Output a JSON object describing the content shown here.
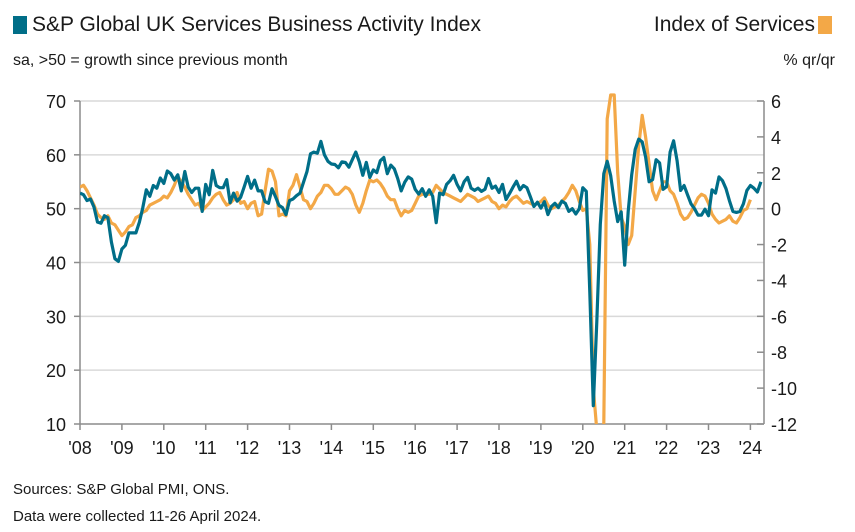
{
  "header": {
    "left_title": "S&P Global UK Services Business Activity Index",
    "left_subtitle": "sa, >50 = growth since previous month",
    "right_title": "Index of Services",
    "right_subtitle": "% qr/qr"
  },
  "footer": {
    "sources": "Sources: S&P Global PMI, ONS.",
    "note": "Data were collected 11-26 April 2024."
  },
  "colors": {
    "pmi": "#006e88",
    "ios": "#f3a847",
    "grid": "#d9d9d9",
    "axis": "#8c8c8c"
  },
  "chart_data": {
    "type": "line",
    "grid": true,
    "x_start": "2008-01",
    "x_frequency": "monthly",
    "x_tick_labels": [
      "'08",
      "'09",
      "'10",
      "'11",
      "'12",
      "'13",
      "'14",
      "'15",
      "'16",
      "'17",
      "'18",
      "'19",
      "'20",
      "'21",
      "'22",
      "'23",
      "'24"
    ],
    "y_left": {
      "range": [
        10,
        70
      ],
      "ticks": [
        "70",
        "60",
        "50",
        "40",
        "30",
        "20",
        "10"
      ]
    },
    "y_right": {
      "range": [
        -12,
        6
      ],
      "ticks": [
        "6",
        "4",
        "2",
        "0",
        "-2",
        "-4",
        "-6",
        "-8",
        "-10",
        "-12"
      ]
    },
    "series": [
      {
        "name": "S&P Global UK Services Business Activity Index",
        "axis": "left",
        "color": "#006e88",
        "values": [
          52.9,
          52.6,
          51.5,
          51.8,
          50.3,
          47.5,
          47.3,
          48.7,
          48.3,
          43.8,
          40.7,
          40.2,
          42.5,
          43.2,
          45.5,
          45.5,
          45.5,
          47.5,
          50.2,
          53.5,
          52.3,
          54.3,
          53.8,
          55.7,
          54.7,
          57.0,
          56.5,
          55.3,
          56.3,
          53.3,
          56.9,
          54.0,
          53.0,
          53.8,
          53.8,
          49.5,
          54.5,
          52.6,
          57.1,
          54.3,
          53.9,
          53.9,
          55.4,
          51.1,
          52.9,
          51.4,
          52.1,
          54.0,
          56.0,
          53.8,
          55.3,
          53.3,
          53.3,
          51.3,
          51.0,
          53.7,
          52.2,
          50.6,
          50.2,
          48.9,
          51.5,
          51.8,
          52.4,
          52.9,
          54.9,
          56.9,
          60.2,
          60.5,
          60.3,
          62.5,
          60.0,
          58.8,
          58.3,
          58.2,
          57.6,
          58.7,
          58.6,
          57.7,
          59.1,
          60.5,
          58.7,
          56.2,
          58.6,
          55.8,
          57.2,
          56.7,
          58.9,
          59.5,
          56.5,
          58.1,
          57.4,
          55.6,
          53.3,
          54.9,
          55.9,
          55.5,
          53.6,
          52.7,
          53.7,
          52.3,
          53.5,
          52.3,
          47.4,
          52.9,
          52.6,
          54.5,
          55.2,
          56.2,
          54.5,
          53.3,
          55.0,
          55.8,
          53.8,
          53.4,
          53.8,
          53.2,
          53.6,
          55.6,
          53.8,
          54.2,
          53.0,
          54.5,
          51.7,
          52.8,
          54.0,
          55.1,
          53.5,
          54.3,
          53.9,
          52.2,
          50.4,
          51.2,
          50.1,
          51.3,
          48.9,
          50.4,
          51.0,
          50.2,
          51.4,
          51.0,
          49.5,
          50.0,
          49.0,
          50.0,
          53.9,
          53.2,
          34.5,
          13.4,
          29.0,
          47.1,
          56.5,
          58.8,
          56.1,
          51.4,
          47.6,
          49.4,
          39.5,
          49.5,
          56.3,
          61.0,
          62.9,
          62.4,
          59.6,
          55.0,
          55.4,
          59.1,
          58.5,
          53.6,
          54.1,
          60.5,
          62.6,
          58.9,
          53.4,
          54.3,
          52.6,
          50.9,
          50.0,
          48.8,
          48.8,
          49.9,
          48.7,
          53.5,
          52.9,
          55.9,
          55.2,
          53.7,
          51.5,
          49.5,
          49.3,
          49.5,
          50.9,
          53.4,
          54.3,
          53.8,
          53.1,
          55.0
        ]
      },
      {
        "name": "Index of Services",
        "axis": "right",
        "color": "#f3a847",
        "values": [
          1.2,
          1.3,
          1.0,
          0.6,
          0.2,
          -0.3,
          -0.5,
          -0.6,
          -0.4,
          -0.8,
          -0.9,
          -1.2,
          -1.5,
          -1.3,
          -1.0,
          -0.9,
          -0.5,
          -0.4,
          -0.2,
          -0.1,
          0.2,
          0.3,
          0.4,
          0.5,
          0.7,
          0.6,
          0.9,
          1.3,
          1.8,
          1.5,
          1.2,
          0.8,
          0.5,
          0.2,
          0.3,
          -0.1,
          0.1,
          0.3,
          0.6,
          0.8,
          0.9,
          0.5,
          0.2,
          0.3,
          0.5,
          0.9,
          0.3,
          0.4,
          0.0,
          0.3,
          0.4,
          -0.4,
          -0.3,
          1.0,
          2.2,
          2.1,
          1.5,
          -0.4,
          -0.3,
          -0.4,
          1.0,
          1.3,
          1.9,
          1.2,
          0.5,
          0.4,
          0.0,
          0.3,
          0.7,
          0.9,
          1.3,
          1.3,
          1.1,
          0.8,
          0.8,
          1.0,
          1.2,
          1.1,
          0.8,
          0.2,
          -0.2,
          0.3,
          1.0,
          1.6,
          1.5,
          1.6,
          1.4,
          1.1,
          0.7,
          0.5,
          0.5,
          0.0,
          -0.4,
          -0.1,
          -0.2,
          -0.1,
          0.3,
          0.7,
          0.8,
          0.8,
          0.8,
          0.9,
          1.3,
          1.1,
          0.9,
          0.8,
          0.7,
          0.6,
          0.5,
          0.4,
          0.6,
          0.8,
          0.7,
          0.6,
          0.4,
          0.5,
          0.6,
          0.7,
          0.4,
          0.3,
          0.0,
          0.2,
          0.1,
          0.4,
          0.6,
          0.7,
          0.5,
          0.3,
          0.4,
          0.3,
          0.2,
          0.3,
          0.4,
          0.6,
          0.2,
          0.0,
          0.1,
          0.2,
          0.4,
          0.6,
          0.9,
          1.3,
          1.0,
          0.4,
          -0.1,
          0.0,
          -2.0,
          -10.0,
          -19.0,
          -20.0,
          -12.0,
          5.0,
          16.0,
          10.0,
          2.0,
          -0.5,
          -1.0,
          -2.0,
          -1.5,
          1.0,
          3.5,
          5.2,
          4.0,
          2.5,
          1.0,
          0.5,
          1.0,
          1.5,
          1.5,
          1.0,
          0.8,
          0.3,
          -0.3,
          -0.6,
          -0.5,
          -0.2,
          0.2,
          0.6,
          0.8,
          0.7,
          0.3,
          -0.3,
          -0.6,
          -0.8,
          -0.7,
          -0.6,
          -0.4,
          -0.7,
          -0.8,
          -0.5,
          -0.1,
          0.0,
          0.5
        ]
      }
    ]
  }
}
